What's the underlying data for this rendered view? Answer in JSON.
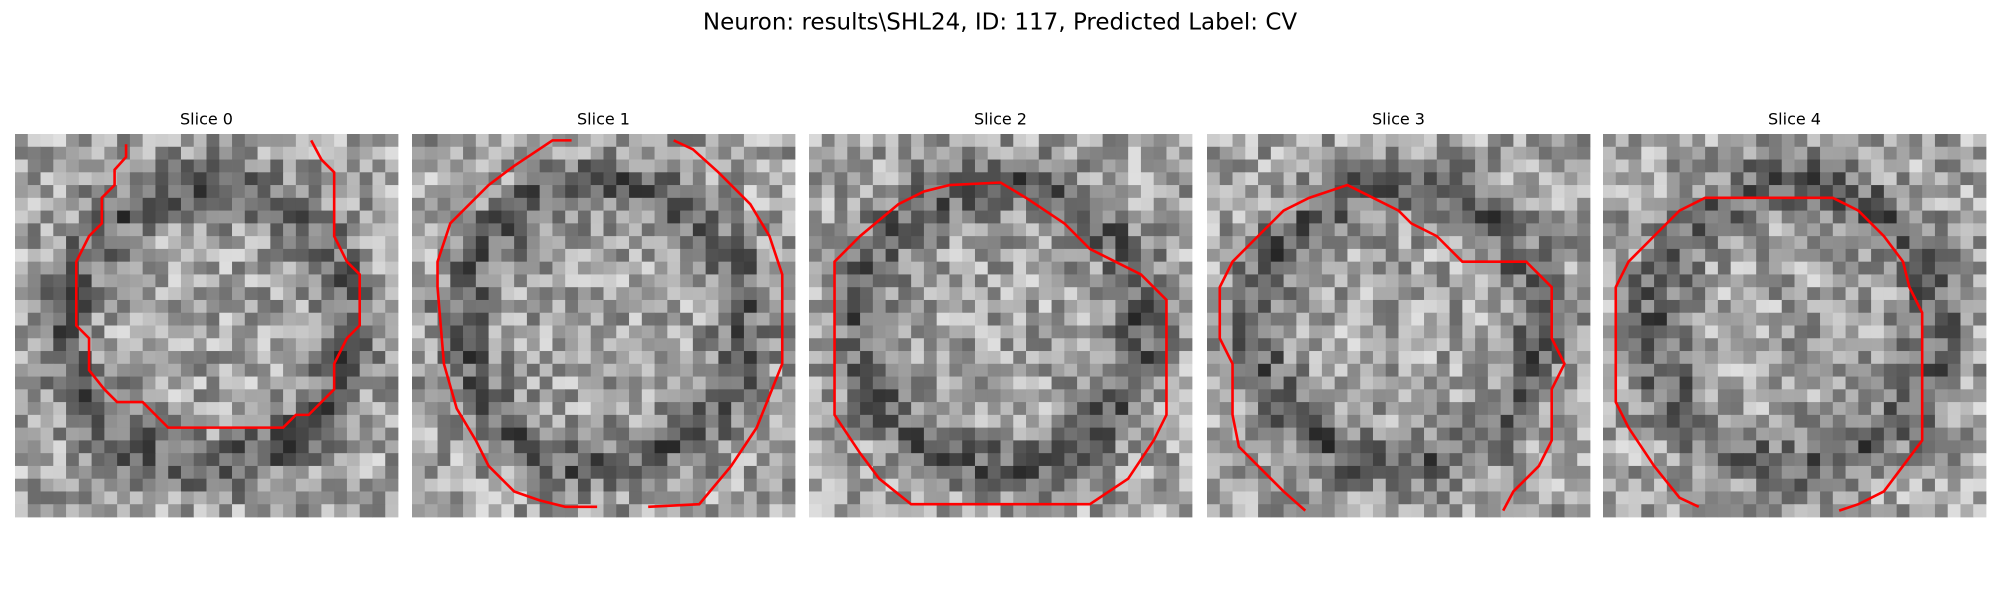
{
  "title": "Neuron: results\\SHL24, ID: 117, Predicted Label: CV",
  "panels": [
    {
      "title": "Slice 0"
    },
    {
      "title": "Slice 1"
    },
    {
      "title": "Slice 2"
    },
    {
      "title": "Slice 3"
    },
    {
      "title": "Slice 4"
    }
  ]
}
